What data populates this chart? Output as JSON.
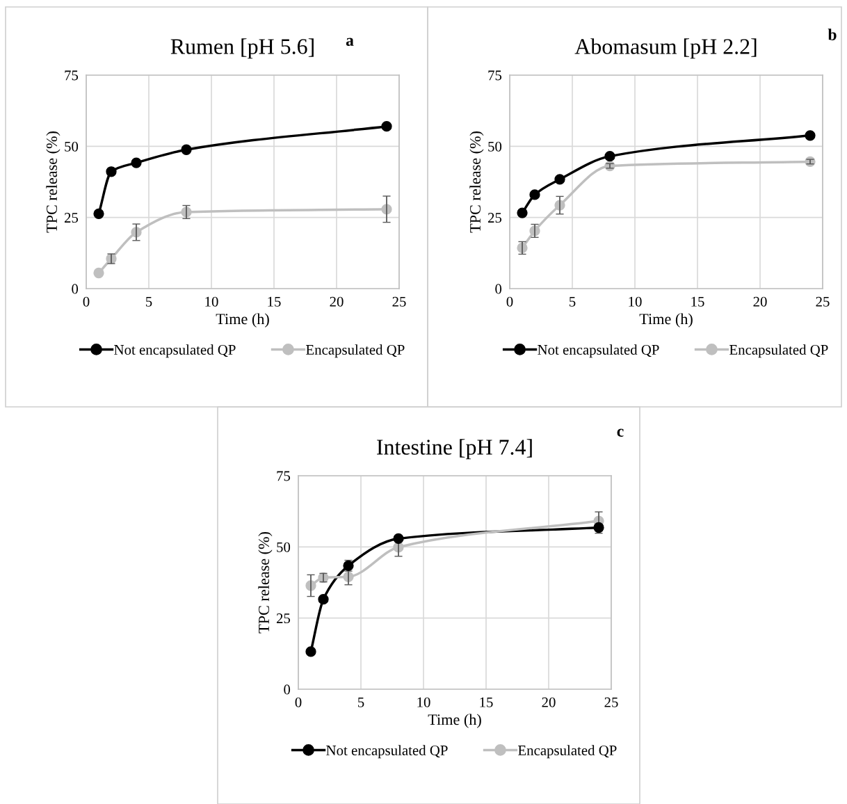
{
  "chart_data": [
    {
      "type": "line",
      "title": "Rumen [pH 5.6]",
      "annotations": [
        "a"
      ],
      "xlabel": "Time (h)",
      "ylabel": "TPC release (%)",
      "x": [
        1,
        2,
        4,
        8,
        24
      ],
      "xlim": [
        0,
        25
      ],
      "xticks": [
        0,
        5,
        10,
        15,
        20,
        25
      ],
      "ylim": [
        0,
        75
      ],
      "yticks": [
        0,
        25,
        50,
        75
      ],
      "grid": true,
      "legend": "bottom",
      "marker": "circle",
      "line_style": "solid",
      "series": [
        {
          "name": "Not encapsulated QP",
          "color": "#000000",
          "values": [
            26.3,
            41.1,
            44.2,
            48.8,
            57.0
          ]
        },
        {
          "name": "Encapsulated QP",
          "color": "#bfbfbf",
          "values": [
            5.5,
            10.5,
            19.8,
            26.9,
            27.9
          ],
          "errors": [
            null,
            1.7,
            2.9,
            2.3,
            4.6
          ]
        }
      ]
    },
    {
      "type": "line",
      "title": "Abomasum [pH 2.2]",
      "annotations": [
        "b"
      ],
      "xlabel": "Time (h)",
      "ylabel": "TPC release (%)",
      "x": [
        1,
        2,
        4,
        8,
        24
      ],
      "xlim": [
        0,
        25
      ],
      "xticks": [
        0,
        5,
        10,
        15,
        20,
        25
      ],
      "ylim": [
        0,
        75
      ],
      "yticks": [
        0,
        25,
        50,
        75
      ],
      "grid": true,
      "legend": "bottom",
      "marker": "circle",
      "line_style": "solid",
      "series": [
        {
          "name": "Not encapsulated QP",
          "color": "#000000",
          "values": [
            26.6,
            33.0,
            38.4,
            46.5,
            53.8
          ]
        },
        {
          "name": "Encapsulated QP",
          "color": "#bfbfbf",
          "values": [
            14.3,
            20.3,
            29.3,
            43.1,
            44.6
          ],
          "errors": [
            2.2,
            2.3,
            3.1,
            0.8,
            0.8
          ]
        }
      ]
    },
    {
      "type": "line",
      "title": "Intestine [pH 7.4]",
      "annotations": [
        "c"
      ],
      "xlabel": "Time (h)",
      "ylabel": "TPC release (%)",
      "x": [
        1,
        2,
        4,
        8,
        24
      ],
      "xlim": [
        0,
        25
      ],
      "xticks": [
        0,
        5,
        10,
        15,
        20,
        25
      ],
      "ylim": [
        0,
        75
      ],
      "yticks": [
        0,
        25,
        50,
        75
      ],
      "grid": true,
      "legend": "bottom",
      "marker": "circle",
      "line_style": "solid",
      "series": [
        {
          "name": "Not encapsulated QP",
          "color": "#000000",
          "values": [
            13.2,
            31.6,
            43.4,
            52.9,
            56.8
          ],
          "errors": [
            null,
            null,
            1.9,
            null,
            2.0
          ]
        },
        {
          "name": "Encapsulated QP",
          "color": "#bfbfbf",
          "values": [
            36.4,
            39.2,
            39.5,
            49.9,
            59.1
          ],
          "errors": [
            3.8,
            1.5,
            2.8,
            3.2,
            3.2
          ]
        }
      ]
    }
  ]
}
